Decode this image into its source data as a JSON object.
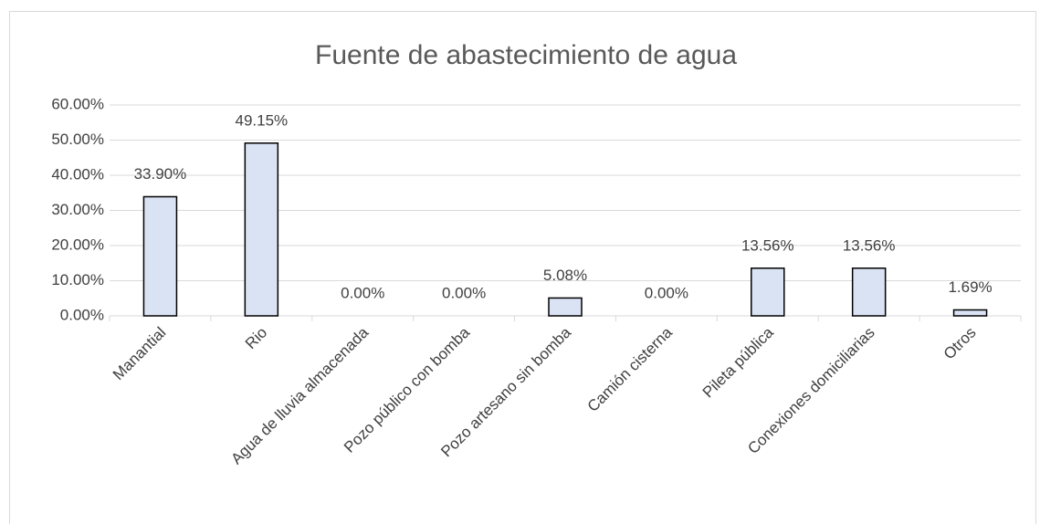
{
  "chart_data": {
    "type": "bar",
    "title": "Fuente de abastecimiento de agua",
    "categories": [
      "Manantial",
      "Rio",
      "Agua de lluvia almacenada",
      "Pozo público con bomba",
      "Pozo artesano sin bomba",
      "Camión cisterna",
      "Pileta pública",
      "Conexiones domiciliarias",
      "Otros"
    ],
    "values": [
      33.9,
      49.15,
      0.0,
      0.0,
      5.08,
      0.0,
      13.56,
      13.56,
      1.69
    ],
    "value_labels": [
      "33.90%",
      "49.15%",
      "0.00%",
      "0.00%",
      "5.08%",
      "0.00%",
      "13.56%",
      "13.56%",
      "1.69%"
    ],
    "color": "#dae3f3",
    "ylim": [
      0,
      60
    ],
    "yticks": [
      {
        "value": 0,
        "label": "0.00%"
      },
      {
        "value": 10,
        "label": "10.00%"
      },
      {
        "value": 20,
        "label": "20.00%"
      },
      {
        "value": 30,
        "label": "30.00%"
      },
      {
        "value": 40,
        "label": "40.00%"
      },
      {
        "value": 50,
        "label": "50.00%"
      },
      {
        "value": 60,
        "label": "60.00%"
      }
    ],
    "grid": true
  }
}
